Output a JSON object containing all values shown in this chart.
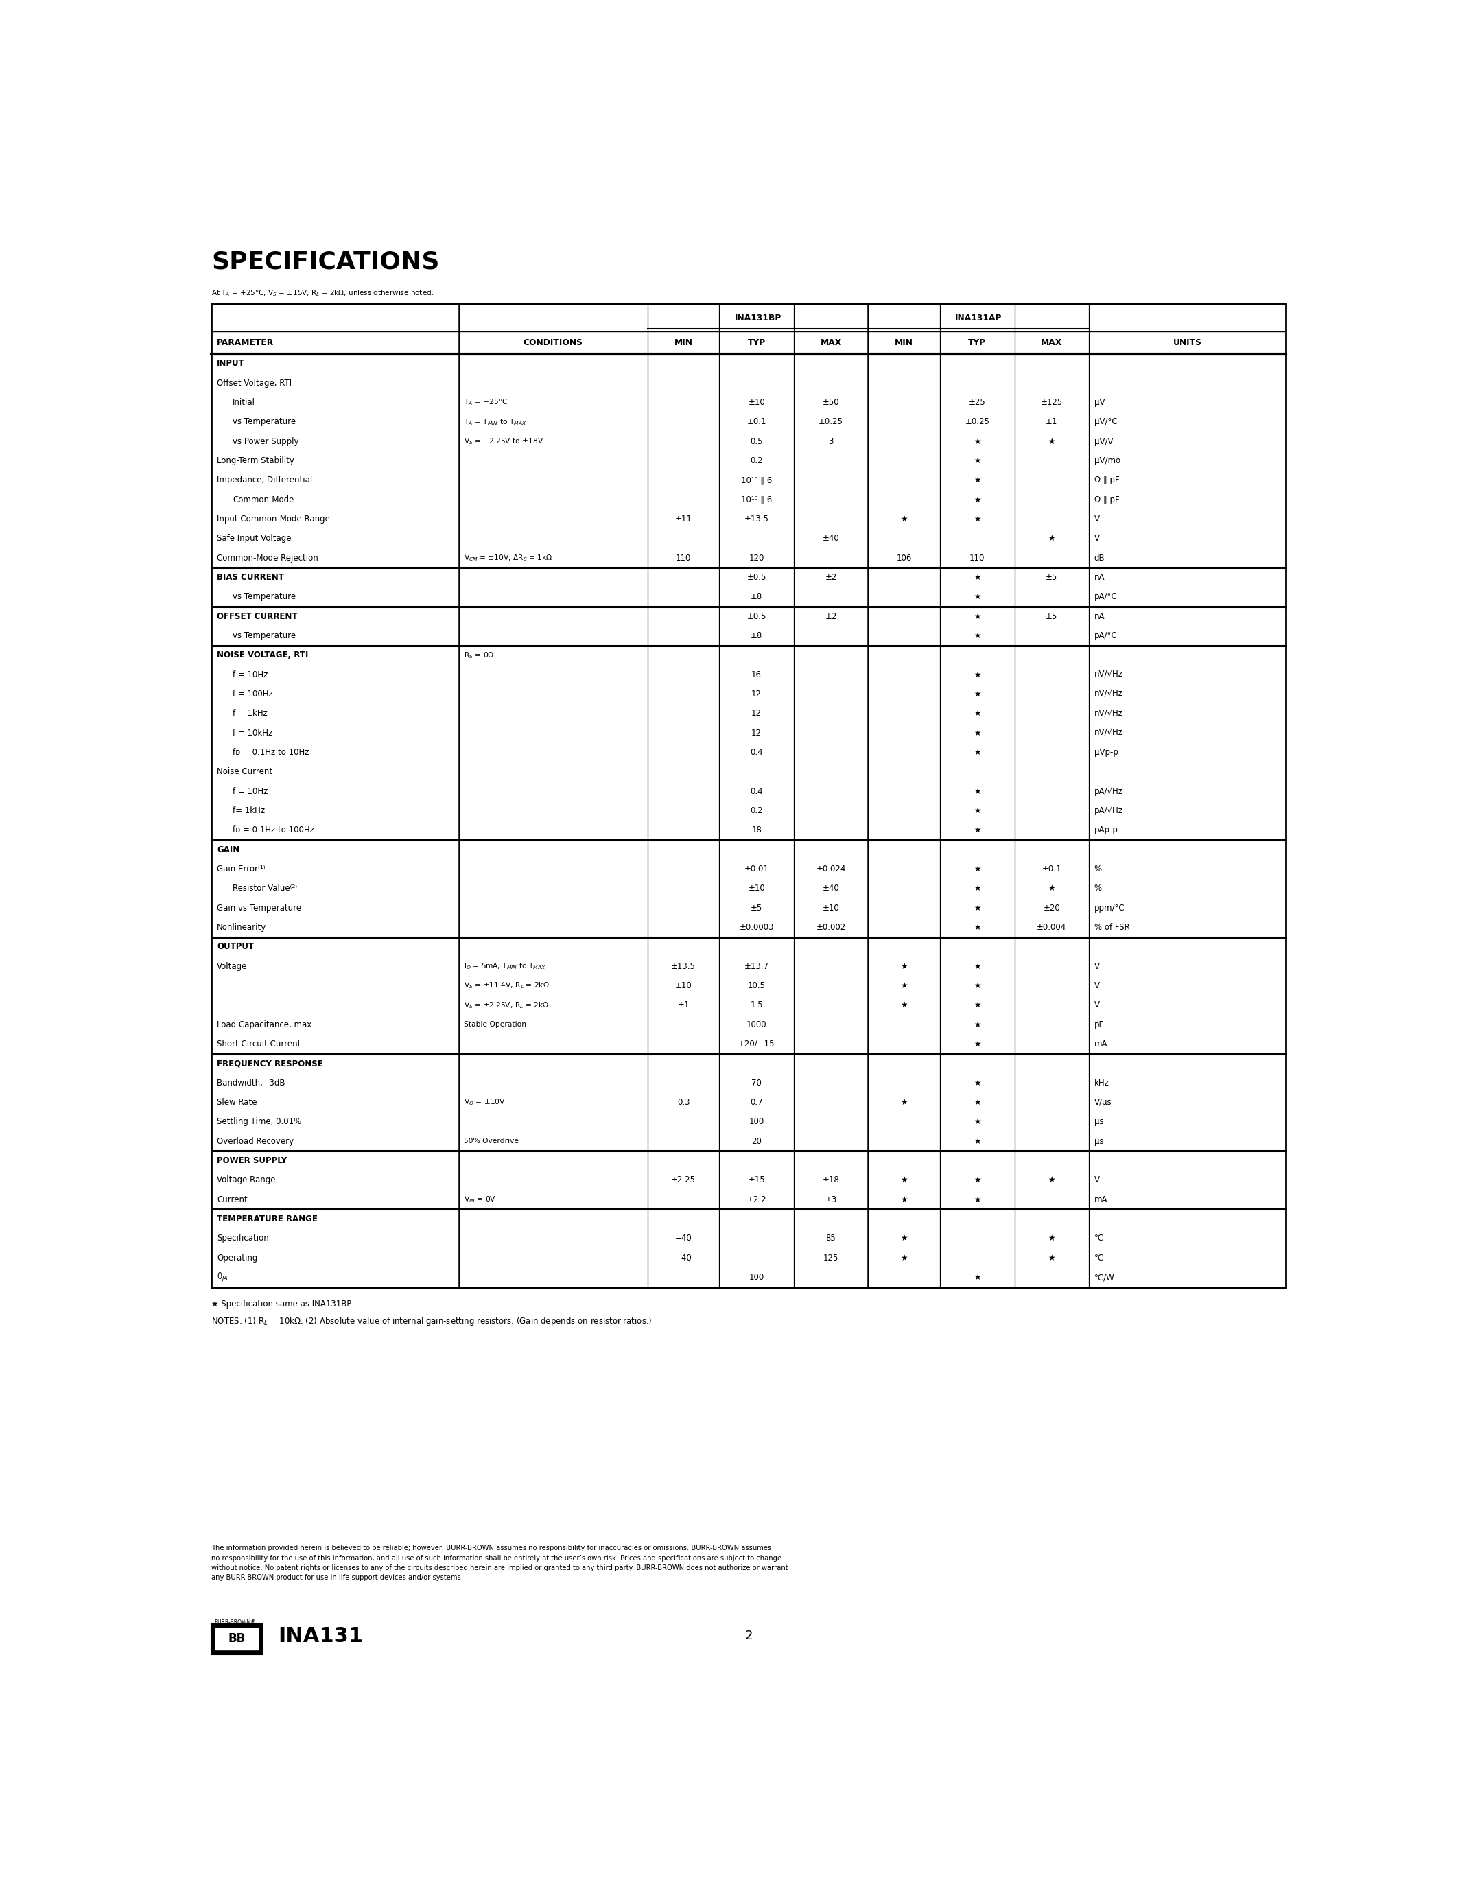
{
  "title": "SPECIFICATIONS",
  "subtitle": "At T$_A$ = +25°C, V$_S$ = ±15V, R$_L$ = 2kΩ, unless otherwise noted.",
  "footer_note1": "★ Specification same as INA131BP.",
  "footer_note2": "NOTES: (1) R$_L$ = 10kΩ. (2) Absolute value of internal gain-setting resistors. (Gain depends on resistor ratios.)",
  "footer_text": "The information provided herein is believed to be reliable; however, BURR-BROWN assumes no responsibility for inaccuracies or omissions. BURR-BROWN assumes\nno responsibility for the use of this information, and all use of such information shall be entirely at the user’s own risk. Prices and specifications are subject to change\nwithout notice. No patent rights or licenses to any of the circuits described herein are implied or granted to any third party. BURR-BROWN does not authorize or warrant\nany BURR-BROWN product for use in life support devices and/or systems.",
  "page_number": "2",
  "star": "★"
}
